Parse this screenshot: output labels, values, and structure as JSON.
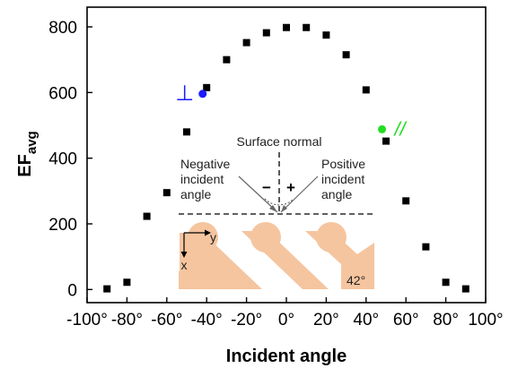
{
  "chart_data": {
    "type": "scatter",
    "xlabel": "Incident angle",
    "ylabel_main": "EF",
    "ylabel_sub": "avg",
    "xlim": [
      -100,
      100
    ],
    "ylim": [
      -40,
      860
    ],
    "xticks": [
      -100,
      -80,
      -60,
      -40,
      -20,
      0,
      20,
      40,
      60,
      80,
      100
    ],
    "xtick_labels": [
      "-100°",
      "-80°",
      "-60°",
      "-40°",
      "-20°",
      "0°",
      "20°",
      "40°",
      "60°",
      "80°",
      "100°"
    ],
    "yticks": [
      0,
      200,
      400,
      600,
      800
    ],
    "ytick_labels": [
      "0",
      "200",
      "400",
      "600",
      "800"
    ],
    "grid": false,
    "series": [
      {
        "marker": "square",
        "color": "#000000",
        "x": [
          -90,
          -80,
          -70,
          -60,
          -50,
          -40,
          -30,
          -20,
          -10,
          0,
          10,
          20,
          30,
          40,
          50,
          60,
          70,
          80,
          90
        ],
        "y": [
          2,
          22,
          223,
          295,
          480,
          615,
          700,
          752,
          782,
          798,
          798,
          775,
          715,
          608,
          452,
          270,
          130,
          22,
          2
        ]
      }
    ],
    "highlight_points": [
      {
        "x": -42,
        "y": 596,
        "color": "#1a1aff",
        "label": "⊥"
      },
      {
        "x": 48,
        "y": 488,
        "color": "#22dd22",
        "label": "//"
      }
    ],
    "inset": {
      "normal_label": "Surface normal",
      "negative_label_lines": [
        "Negative",
        "incident",
        "angle"
      ],
      "positive_label_lines": [
        "Positive",
        "incident",
        "angle"
      ],
      "minus_sign": "−",
      "plus_sign": "+",
      "axis_y_label": "y",
      "axis_x_label": "x",
      "tilt_label": "42°",
      "structure_color": "#f5c59f"
    }
  }
}
